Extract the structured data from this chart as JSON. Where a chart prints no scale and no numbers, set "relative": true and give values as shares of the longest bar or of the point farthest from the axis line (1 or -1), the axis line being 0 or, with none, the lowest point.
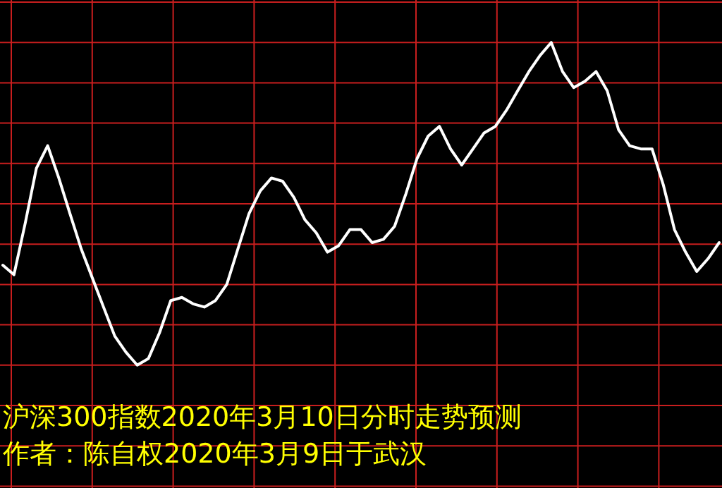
{
  "chart_data": {
    "type": "line",
    "relative": true,
    "grid": true,
    "categories": [
      null,
      null,
      null,
      null,
      null,
      null,
      null,
      null,
      null,
      null,
      null,
      null,
      null,
      null,
      null,
      null,
      null,
      null,
      null,
      null,
      null,
      null,
      null,
      null,
      null,
      null,
      null,
      null,
      null,
      null,
      null,
      null,
      null,
      null,
      null,
      null,
      null,
      null,
      null,
      null,
      null,
      null,
      null,
      null,
      null,
      null,
      null,
      null,
      null,
      null,
      null,
      null,
      null,
      null,
      null,
      null,
      null,
      null,
      null,
      null,
      null,
      null,
      null,
      null,
      null
    ],
    "series": [
      {
        "color": "#ffffff",
        "values": [
          0.31,
          0.28,
          0.44,
          0.61,
          0.68,
          0.58,
          0.47,
          0.36,
          0.27,
          0.18,
          0.09,
          0.04,
          0,
          0.02,
          0.1,
          0.2,
          0.21,
          0.19,
          0.18,
          0.2,
          0.25,
          0.36,
          0.47,
          0.54,
          0.58,
          0.57,
          0.52,
          0.45,
          0.41,
          0.35,
          0.37,
          0.42,
          0.42,
          0.38,
          0.39,
          0.43,
          0.53,
          0.64,
          0.71,
          0.74,
          0.67,
          0.62,
          0.67,
          0.72,
          0.74,
          0.79,
          0.85,
          0.91,
          0.96,
          1,
          0.91,
          0.86,
          0.88,
          0.91,
          0.85,
          0.73,
          0.68,
          0.67,
          0.67,
          0.56,
          0.42,
          0.35,
          0.29,
          0.33,
          0.38
        ]
      }
    ],
    "annotations": [
      "沪深300指数2020年3月10日分时走势预测",
      "作者：陈自权2020年3月9日于武汉"
    ],
    "marker": "none",
    "line_style": "solid"
  }
}
